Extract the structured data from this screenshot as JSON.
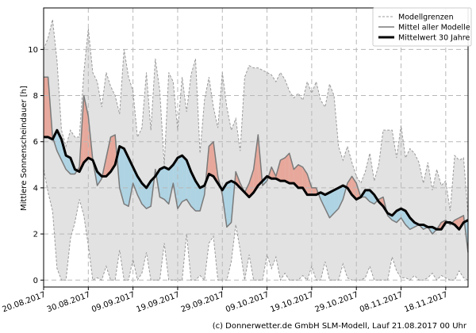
{
  "chart_data": {
    "type": "line",
    "title": "",
    "xlabel": "",
    "ylabel": "Mittlere Sonnenscheindauer [h]",
    "ylim": [
      -0.3,
      11.8
    ],
    "yticks": [
      0,
      2,
      4,
      6,
      8,
      10
    ],
    "x_start_day": 0,
    "x_end_day": 95,
    "xtick_days": [
      0,
      10,
      20,
      30,
      40,
      50,
      60,
      70,
      80,
      90
    ],
    "xtick_labels": [
      "20.08.2017",
      "30.08.2017",
      "09.09.2017",
      "19.09.2017",
      "29.09.2017",
      "09.10.2017",
      "19.10.2017",
      "29.10.2017",
      "08.11.2017",
      "18.11.2017"
    ],
    "grid": true,
    "legend": {
      "position": "top-right",
      "entries": [
        "Modellgrenzen",
        "Mittel aller Modelle",
        "Mittelwert 30 Jahre"
      ]
    },
    "credit": "(c) Donnerwetter.de GmbH SLM-Modell, Lauf 21.08.2017 00 Uhr",
    "series": [
      {
        "name": "Modellgrenzen (max)",
        "x": [
          0,
          1,
          2,
          3,
          4,
          5,
          6,
          7,
          8,
          9,
          10,
          11,
          12,
          13,
          14,
          15,
          16,
          17,
          18,
          19,
          20,
          21,
          22,
          23,
          24,
          25,
          26,
          27,
          28,
          29,
          30,
          31,
          32,
          33,
          34,
          35,
          36,
          37,
          38,
          39,
          40,
          41,
          42,
          43,
          44,
          45,
          46,
          47,
          48,
          49,
          50,
          51,
          52,
          53,
          54,
          55,
          56,
          57,
          58,
          59,
          60,
          61,
          62,
          63,
          64,
          65,
          66,
          67,
          68,
          69,
          70,
          71,
          72,
          73,
          74,
          75,
          76,
          77,
          78,
          79,
          80,
          81,
          82,
          83,
          84,
          85,
          86,
          87,
          88,
          89,
          90,
          91,
          92,
          93,
          94,
          95
        ],
        "values": [
          10.0,
          10.5,
          11.3,
          9.5,
          6.5,
          5.8,
          6.5,
          6.2,
          6.2,
          9.0,
          10.9,
          9.0,
          8.6,
          7.5,
          9.0,
          8.4,
          8.0,
          7.2,
          10.0,
          8.8,
          8.2,
          6.2,
          6.6,
          9.0,
          6.5,
          9.6,
          8.2,
          5.0,
          9.0,
          8.6,
          6.5,
          8.8,
          7.3,
          8.9,
          9.6,
          5.5,
          7.8,
          8.8,
          7.5,
          6.6,
          9.0,
          7.5,
          6.5,
          7.0,
          5.6,
          8.8,
          9.3,
          9.2,
          9.2,
          9.1,
          9.0,
          8.9,
          8.6,
          9.0,
          8.7,
          8.2,
          7.9,
          8.1,
          7.8,
          8.6,
          8.1,
          8.6,
          7.8,
          7.5,
          8.5,
          8.0,
          5.8,
          5.2,
          5.8,
          5.1,
          4.5,
          4.2,
          4.7,
          5.5,
          4.3,
          5.0,
          6.5,
          6.5,
          6.5,
          5.3,
          6.7,
          5.3,
          5.7,
          5.5,
          5.1,
          4.2,
          5.1,
          3.9,
          4.8,
          4.1,
          4.3,
          3.0,
          5.4,
          5.2,
          5.3,
          2.8
        ]
      },
      {
        "name": "Modellgrenzen (min)",
        "x": [
          0,
          1,
          2,
          3,
          4,
          5,
          6,
          7,
          8,
          9,
          10,
          11,
          12,
          13,
          14,
          15,
          16,
          17,
          18,
          19,
          20,
          21,
          22,
          23,
          24,
          25,
          26,
          27,
          28,
          29,
          30,
          31,
          32,
          33,
          34,
          35,
          36,
          37,
          38,
          39,
          40,
          41,
          42,
          43,
          44,
          45,
          46,
          47,
          48,
          49,
          50,
          51,
          52,
          53,
          54,
          55,
          56,
          57,
          58,
          59,
          60,
          61,
          62,
          63,
          64,
          65,
          66,
          67,
          68,
          69,
          70,
          71,
          72,
          73,
          74,
          75,
          76,
          77,
          78,
          79,
          80,
          81,
          82,
          83,
          84,
          85,
          86,
          87,
          88,
          89,
          90,
          91,
          92,
          93,
          94,
          95
        ],
        "values": [
          4.8,
          3.8,
          3.0,
          0.5,
          0.0,
          0.0,
          1.8,
          2.5,
          3.5,
          2.8,
          1.5,
          0.0,
          0.1,
          0.0,
          0.6,
          0.0,
          0.0,
          1.3,
          0.0,
          0.0,
          0.9,
          0.0,
          0.3,
          1.2,
          0.0,
          0.0,
          0.0,
          1.6,
          0.0,
          0.0,
          0.0,
          0.0,
          2.0,
          0.0,
          0.0,
          0.2,
          0.0,
          1.6,
          1.9,
          0.0,
          0.0,
          0.0,
          0.8,
          2.4,
          1.3,
          0.0,
          1.1,
          0.0,
          0.0,
          0.0,
          1.1,
          0.5,
          1.0,
          0.0,
          0.3,
          0.0,
          0.0,
          0.0,
          0.2,
          0.0,
          0.6,
          0.0,
          0.0,
          0.8,
          0.0,
          0.0,
          0.0,
          0.7,
          0.1,
          0.0,
          0.0,
          0.0,
          0.1,
          0.6,
          0.0,
          0.0,
          0.0,
          0.0,
          1.0,
          0.4,
          0.1,
          0.1,
          0.0,
          0.2,
          0.0,
          0.0,
          0.1,
          0.3,
          0.0,
          0.2,
          0.1,
          0.0,
          0.0,
          0.4,
          0.1,
          0.0
        ]
      },
      {
        "name": "Mittel aller Modelle",
        "x": [
          0,
          1,
          2,
          3,
          4,
          5,
          6,
          7,
          8,
          9,
          10,
          11,
          12,
          13,
          14,
          15,
          16,
          17,
          18,
          19,
          20,
          21,
          22,
          23,
          24,
          25,
          26,
          27,
          28,
          29,
          30,
          31,
          32,
          33,
          34,
          35,
          36,
          37,
          38,
          39,
          40,
          41,
          42,
          43,
          44,
          45,
          46,
          47,
          48,
          49,
          50,
          51,
          52,
          53,
          54,
          55,
          56,
          57,
          58,
          59,
          60,
          61,
          62,
          63,
          64,
          65,
          66,
          67,
          68,
          69,
          70,
          71,
          72,
          73,
          74,
          75,
          76,
          77,
          78,
          79,
          80,
          81,
          82,
          83,
          84,
          85,
          86,
          87,
          88,
          89,
          90,
          91,
          92,
          93,
          94,
          95
        ],
        "values": [
          8.8,
          8.8,
          6.2,
          5.6,
          5.2,
          4.8,
          4.6,
          4.6,
          4.9,
          8.0,
          7.1,
          5.2,
          4.1,
          4.4,
          5.3,
          6.2,
          6.3,
          4.0,
          3.3,
          3.2,
          4.2,
          3.7,
          3.3,
          3.1,
          3.2,
          4.8,
          3.6,
          3.5,
          3.3,
          4.2,
          3.1,
          3.4,
          3.5,
          3.2,
          3.0,
          3.0,
          3.7,
          5.8,
          6.0,
          4.5,
          3.7,
          2.3,
          2.5,
          4.7,
          4.2,
          3.8,
          4.2,
          4.8,
          6.3,
          4.1,
          4.3,
          4.9,
          4.5,
          5.2,
          5.3,
          5.5,
          4.8,
          5.0,
          4.9,
          4.6,
          4.0,
          4.0,
          3.5,
          3.1,
          2.7,
          2.9,
          3.1,
          3.5,
          4.2,
          4.5,
          4.2,
          3.6,
          3.6,
          3.4,
          3.3,
          3.5,
          3.6,
          2.8,
          2.6,
          2.5,
          2.7,
          2.4,
          2.2,
          2.3,
          2.4,
          2.2,
          2.3,
          2.0,
          2.2,
          2.5,
          2.6,
          2.4,
          2.6,
          2.7,
          2.8,
          1.2
        ]
      },
      {
        "name": "Mittelwert 30 Jahre",
        "x": [
          0,
          1,
          2,
          3,
          4,
          5,
          6,
          7,
          8,
          9,
          10,
          11,
          12,
          13,
          14,
          15,
          16,
          17,
          18,
          19,
          20,
          21,
          22,
          23,
          24,
          25,
          26,
          27,
          28,
          29,
          30,
          31,
          32,
          33,
          34,
          35,
          36,
          37,
          38,
          39,
          40,
          41,
          42,
          43,
          44,
          45,
          46,
          47,
          48,
          49,
          50,
          51,
          52,
          53,
          54,
          55,
          56,
          57,
          58,
          59,
          60,
          61,
          62,
          63,
          64,
          65,
          66,
          67,
          68,
          69,
          70,
          71,
          72,
          73,
          74,
          75,
          76,
          77,
          78,
          79,
          80,
          81,
          82,
          83,
          84,
          85,
          86,
          87,
          88,
          89,
          90,
          91,
          92,
          93,
          94,
          95
        ],
        "values": [
          6.2,
          6.2,
          6.1,
          6.5,
          6.1,
          5.4,
          5.3,
          4.8,
          4.7,
          5.1,
          5.3,
          5.2,
          4.7,
          4.5,
          4.5,
          4.7,
          5.0,
          5.8,
          5.7,
          5.3,
          4.9,
          4.5,
          4.2,
          4.0,
          4.3,
          4.5,
          4.8,
          4.9,
          4.8,
          5.0,
          5.3,
          5.4,
          5.2,
          4.7,
          4.3,
          4.0,
          4.1,
          4.6,
          4.5,
          4.2,
          3.9,
          4.2,
          4.3,
          4.2,
          4.0,
          3.8,
          3.6,
          3.8,
          4.1,
          4.3,
          4.5,
          4.4,
          4.4,
          4.3,
          4.3,
          4.2,
          4.2,
          4.0,
          4.0,
          3.7,
          3.7,
          3.7,
          3.8,
          3.7,
          3.8,
          3.9,
          4.0,
          4.1,
          4.0,
          3.7,
          3.5,
          3.6,
          3.9,
          3.9,
          3.7,
          3.4,
          3.2,
          2.9,
          2.8,
          3.0,
          3.1,
          3.0,
          2.7,
          2.5,
          2.4,
          2.4,
          2.3,
          2.3,
          2.2,
          2.2,
          2.5,
          2.5,
          2.4,
          2.2,
          2.5,
          2.6
        ]
      }
    ]
  }
}
